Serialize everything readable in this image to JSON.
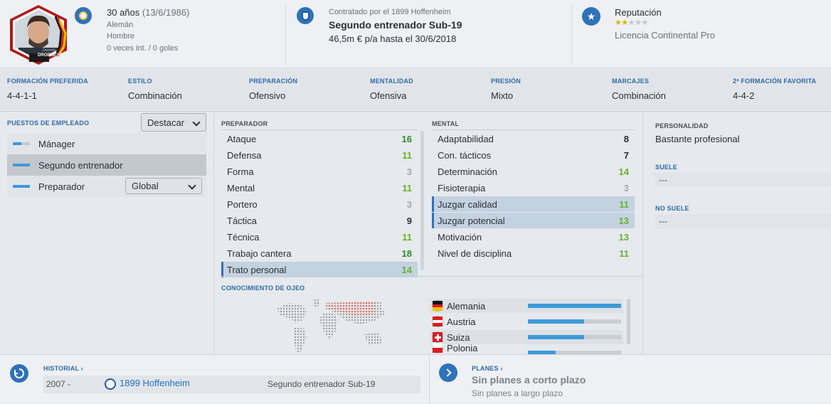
{
  "profile": {
    "age_line": "30 años",
    "birth_date": "(13/6/1986)",
    "nationality": "Alemán",
    "gender": "Hombre",
    "caps": "0 veces int. / 0 goles",
    "avatar_name": "DROBISCH",
    "avatar_first": "Dominik"
  },
  "contract": {
    "club_line": "Contratado por el 1899 Hoffenheim",
    "role": "Segundo entrenador Sub-19",
    "wage": "46,5m € p/a hasta el 30/6/2018"
  },
  "reputation": {
    "label": "Reputación",
    "stars": 1.5,
    "license": "Licencia Continental Pro"
  },
  "tactics": [
    {
      "label": "FORMACIÓN PREFERIDA",
      "value": "4-4-1-1"
    },
    {
      "label": "ESTILO",
      "value": "Combinación"
    },
    {
      "label": "PREPARACIÓN",
      "value": "Ofensivo"
    },
    {
      "label": "MENTALIDAD",
      "value": "Ofensiva"
    },
    {
      "label": "PRESIÓN",
      "value": "Mixto"
    },
    {
      "label": "MARCAJES",
      "value": "Combinación"
    },
    {
      "label": "2ª FORMACIÓN FAVORITA",
      "value": "4-4-2"
    }
  ],
  "roles": {
    "title": "PUESTOS DE EMPLEADO",
    "highlight_select": "Destacar",
    "items": [
      {
        "label": "Mánager",
        "fill": 0.5
      },
      {
        "label": "Segundo entrenador",
        "fill": 1.0
      },
      {
        "label": "Preparador",
        "fill": 1.0
      }
    ],
    "preparador_select": "Global"
  },
  "coaching": {
    "title": "PREPARADOR",
    "items": [
      {
        "label": "Ataque",
        "value": "16"
      },
      {
        "label": "Defensa",
        "value": "11"
      },
      {
        "label": "Forma",
        "value": "3"
      },
      {
        "label": "Mental",
        "value": "11"
      },
      {
        "label": "Portero",
        "value": "3"
      },
      {
        "label": "Táctica",
        "value": "9"
      },
      {
        "label": "Técnica",
        "value": "11"
      },
      {
        "label": "Trabajo cantera",
        "value": "18"
      },
      {
        "label": "Trato personal",
        "value": "14"
      }
    ]
  },
  "mental": {
    "title": "MENTAL",
    "items": [
      {
        "label": "Adaptabilidad",
        "value": "8"
      },
      {
        "label": "Con. tácticos",
        "value": "7"
      },
      {
        "label": "Determinación",
        "value": "14"
      },
      {
        "label": "Fisioterapia",
        "value": "3"
      },
      {
        "label": "Juzgar calidad",
        "value": "11"
      },
      {
        "label": "Juzgar potencial",
        "value": "13"
      },
      {
        "label": "Motivación",
        "value": "13"
      },
      {
        "label": "Nivel de disciplina",
        "value": "11"
      }
    ]
  },
  "personality": {
    "title": "PERSONALIDAD",
    "value": "Bastante profesional",
    "suele_title": "SUELE",
    "suele_value": "---",
    "no_suele_title": "NO SUELE",
    "no_suele_value": "---"
  },
  "scouting": {
    "title": "CONOCIMIENTO DE OJEO",
    "countries": [
      {
        "name": "Alemania",
        "knowledge": 1.0
      },
      {
        "name": "Austria",
        "knowledge": 0.6
      },
      {
        "name": "Suiza",
        "knowledge": 0.6
      },
      {
        "name": "Polonia",
        "knowledge": 0.3
      }
    ]
  },
  "history": {
    "title": "HISTORIAL",
    "year": "2007 -",
    "club": "1899 Hoffenheim",
    "role": "Segundo entrenador Sub-19"
  },
  "plans": {
    "title": "PLANES",
    "short": "Sin planes a corto plazo",
    "long": "Sin planes a largo plazo"
  }
}
